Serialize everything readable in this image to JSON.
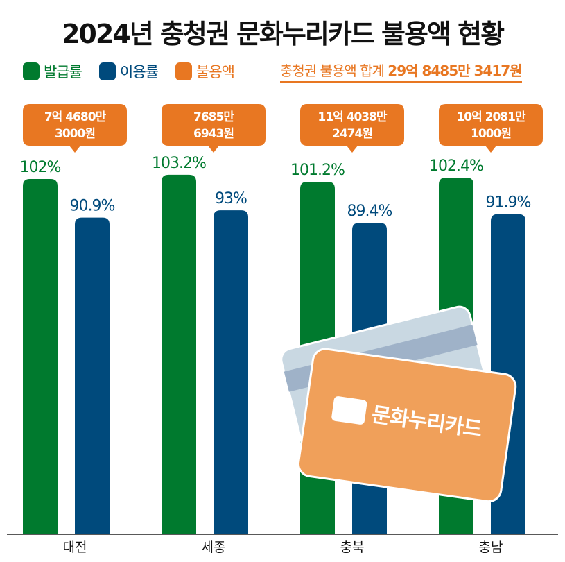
{
  "title": "2024년 충청권 문화누리카드 불용액 현황",
  "legend": [
    {
      "label": "발급률",
      "color": "#007a2e"
    },
    {
      "label": "이용률",
      "color": "#004a7c"
    },
    {
      "label": "불용액",
      "color": "#e87722"
    }
  ],
  "total": {
    "label": "충청권 불용액 합계",
    "value": "29억 8485만 3417원"
  },
  "card_logo": "문화누리카드",
  "chart_data": {
    "type": "bar",
    "categories": [
      "대전",
      "세종",
      "충북",
      "충남"
    ],
    "series": [
      {
        "name": "발급률",
        "color": "#007a2e",
        "values": [
          102,
          103.2,
          101.2,
          102.4
        ],
        "labels": [
          "102%",
          "103.2%",
          "101.2%",
          "102.4%"
        ]
      },
      {
        "name": "이용률",
        "color": "#004a7c",
        "values": [
          90.9,
          93,
          89.4,
          91.9
        ],
        "labels": [
          "90.9%",
          "93%",
          "89.4%",
          "91.9%"
        ]
      }
    ],
    "callouts": [
      [
        "7억 4680만",
        "3000원"
      ],
      [
        "7685만",
        "6943원"
      ],
      [
        "11억 4038만",
        "2474원"
      ],
      [
        "10억 2081만",
        "1000원"
      ]
    ],
    "ylim": [
      0,
      105
    ]
  }
}
